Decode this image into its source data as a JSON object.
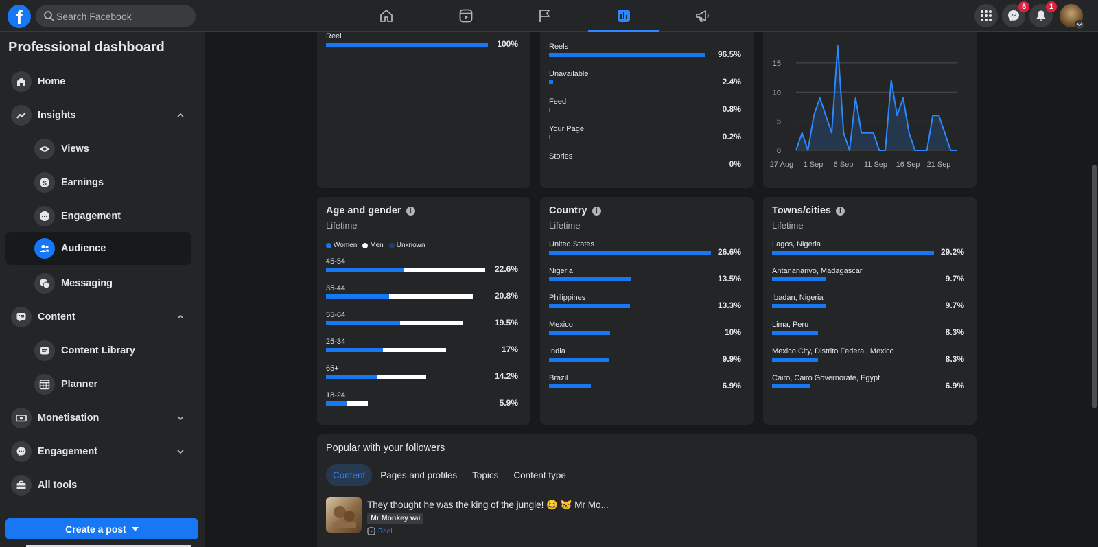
{
  "topbar": {
    "logo_letter": "f",
    "search_placeholder": "Search Facebook",
    "nav_icons": [
      "home-icon",
      "video-icon",
      "flag-icon",
      "insights-chart-icon",
      "megaphone-icon"
    ],
    "messenger_badge": "8",
    "notifications_badge": "1"
  },
  "sidebar": {
    "title": "Professional dashboard",
    "items": [
      {
        "label": "Home",
        "icon": "home-icon"
      },
      {
        "label": "Insights",
        "icon": "trend-icon"
      },
      {
        "label": "Views",
        "icon": "eye-icon"
      },
      {
        "label": "Earnings",
        "icon": "dollar-icon"
      },
      {
        "label": "Engagement",
        "icon": "chat-dots-icon"
      },
      {
        "label": "Audience",
        "icon": "people-icon"
      },
      {
        "label": "Messaging",
        "icon": "messages-icon"
      },
      {
        "label": "Content",
        "icon": "content-icon"
      },
      {
        "label": "Content Library",
        "icon": "library-icon"
      },
      {
        "label": "Planner",
        "icon": "calendar-icon"
      },
      {
        "label": "Monetisation",
        "icon": "money-icon"
      },
      {
        "label": "Engagement",
        "icon": "engagement-icon"
      },
      {
        "label": "All tools",
        "icon": "toolbox-icon"
      }
    ],
    "create_post_label": "Create a post"
  },
  "cards": {
    "content_type": {
      "rows": [
        {
          "label": "Reel",
          "pct": "100%",
          "value": 100
        }
      ]
    },
    "source": {
      "rows": [
        {
          "label": "Reels",
          "pct": "96.5%",
          "value": 96.5
        },
        {
          "label": "Unavailable",
          "pct": "2.4%",
          "value": 2.4
        },
        {
          "label": "Feed",
          "pct": "0.8%",
          "value": 0.8
        },
        {
          "label": "Your Page",
          "pct": "0.2%",
          "value": 0.2
        },
        {
          "label": "Stories",
          "pct": "0%",
          "value": 0
        }
      ]
    },
    "age_gender": {
      "title": "Age and gender",
      "subtitle": "Lifetime",
      "legend": [
        "Women",
        "Men",
        "Unknown"
      ],
      "colors": {
        "women": "#1877f2",
        "men": "#ffffff",
        "unknown": "#1c3e73"
      },
      "rows": [
        {
          "label": "45-54",
          "pct": "22.6%",
          "women": 11.0,
          "men": 11.6
        },
        {
          "label": "35-44",
          "pct": "20.8%",
          "women": 9.0,
          "men": 11.8
        },
        {
          "label": "55-64",
          "pct": "19.5%",
          "women": 10.5,
          "men": 9.0
        },
        {
          "label": "25-34",
          "pct": "17%",
          "women": 8.1,
          "men": 8.9
        },
        {
          "label": "65+",
          "pct": "14.2%",
          "women": 7.3,
          "men": 6.9
        },
        {
          "label": "18-24",
          "pct": "5.9%",
          "women": 3.0,
          "men": 2.9
        }
      ]
    },
    "country": {
      "title": "Country",
      "subtitle": "Lifetime",
      "rows": [
        {
          "label": "United States",
          "pct": "26.6%",
          "value": 26.6
        },
        {
          "label": "Nigeria",
          "pct": "13.5%",
          "value": 13.5
        },
        {
          "label": "Philippines",
          "pct": "13.3%",
          "value": 13.3
        },
        {
          "label": "Mexico",
          "pct": "10%",
          "value": 10
        },
        {
          "label": "India",
          "pct": "9.9%",
          "value": 9.9
        },
        {
          "label": "Brazil",
          "pct": "6.9%",
          "value": 6.9
        }
      ]
    },
    "towns": {
      "title": "Towns/cities",
      "subtitle": "Lifetime",
      "rows": [
        {
          "label": "Lagos, Nigeria",
          "pct": "29.2%",
          "value": 29.2
        },
        {
          "label": "Antananarivo, Madagascar",
          "pct": "9.7%",
          "value": 9.7
        },
        {
          "label": "Ibadan, Nigeria",
          "pct": "9.7%",
          "value": 9.7
        },
        {
          "label": "Lima, Peru",
          "pct": "8.3%",
          "value": 8.3
        },
        {
          "label": "Mexico City, Distrito Federal, Mexico",
          "pct": "8.3%",
          "value": 8.3
        },
        {
          "label": "Cairo, Cairo Governorate, Egypt",
          "pct": "6.9%",
          "value": 6.9
        }
      ]
    }
  },
  "chart_data": {
    "type": "area",
    "title": "",
    "xlabel": "",
    "ylabel": "",
    "y_ticks": [
      "0",
      "5",
      "10",
      "15"
    ],
    "x_ticks": [
      "27 Aug",
      "1 Sep",
      "6 Sep",
      "11 Sep",
      "16 Sep",
      "21 Sep"
    ],
    "ylim": [
      0,
      19
    ],
    "grid": true,
    "values": [
      0,
      3,
      0,
      6,
      9,
      6,
      3,
      18,
      3,
      0,
      9,
      3,
      3,
      3,
      0,
      0,
      12,
      6,
      9,
      3,
      0,
      0,
      0,
      6,
      6,
      3,
      0,
      0
    ],
    "color": "#2d88ff"
  },
  "popular": {
    "title": "Popular with your followers",
    "tabs": [
      "Content",
      "Pages and profiles",
      "Topics",
      "Content type"
    ],
    "post": {
      "text": "They thought he was the king of the jungle! 😆 😿 Mr Mo...",
      "tag": "Mr Monkey vai",
      "type": "Reel"
    }
  }
}
